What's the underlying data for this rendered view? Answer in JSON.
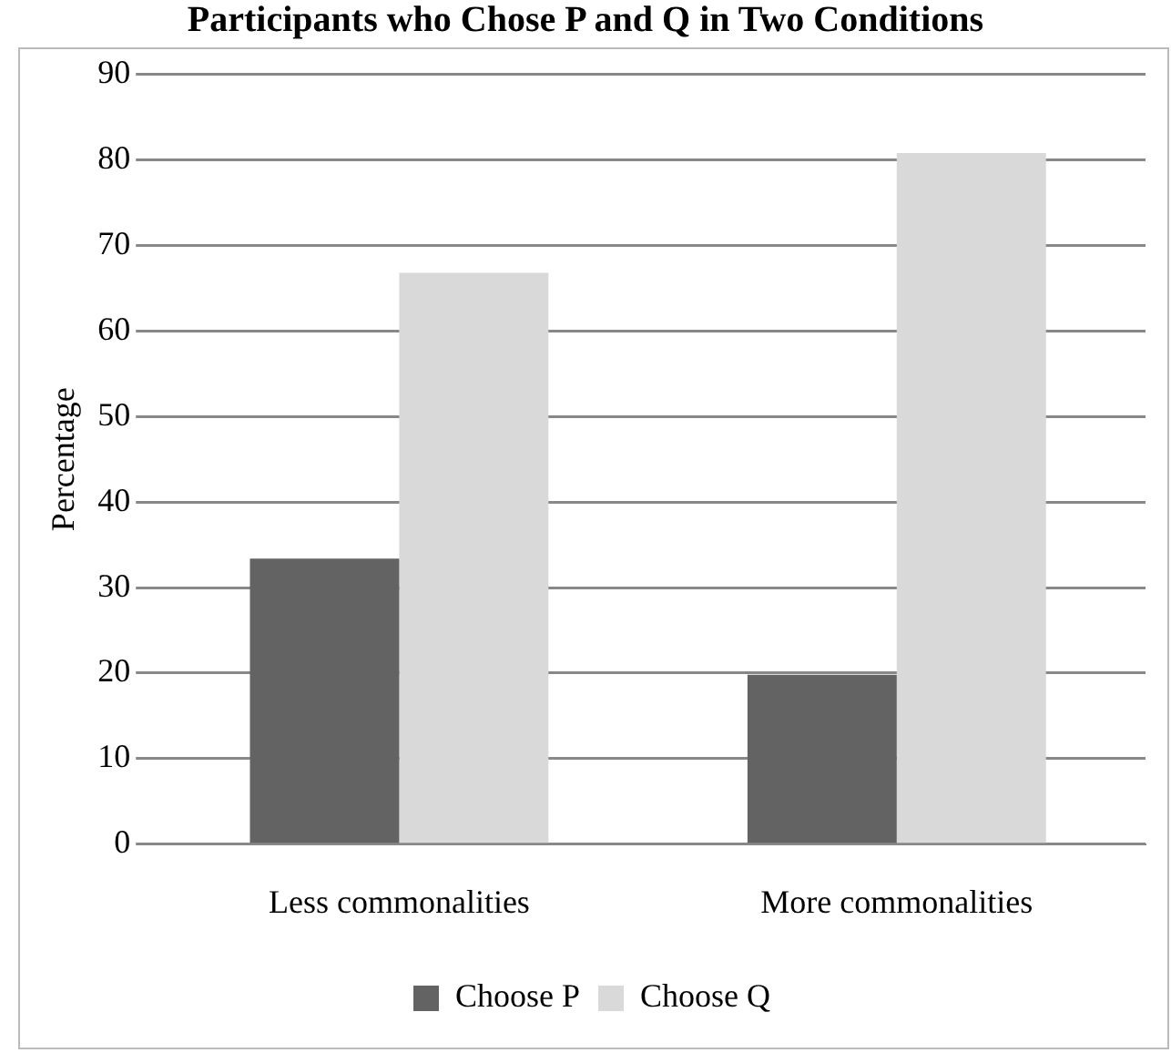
{
  "chart_data": {
    "type": "bar",
    "title": "Participants who Chose P and Q in Two Conditions",
    "ylabel": "Percentage",
    "categories": [
      "Less commonalities",
      "More commonalities"
    ],
    "series": [
      {
        "name": "Choose P",
        "color": "#636363",
        "values": [
          33.4,
          19.8
        ]
      },
      {
        "name": "Choose Q",
        "color": "#d9d9d9",
        "values": [
          66.8,
          80.8
        ]
      }
    ],
    "ylim": [
      0,
      90
    ],
    "yticks": [
      0,
      10,
      20,
      30,
      40,
      50,
      60,
      70,
      80,
      90
    ],
    "grid": "y",
    "legend": "bottom"
  }
}
